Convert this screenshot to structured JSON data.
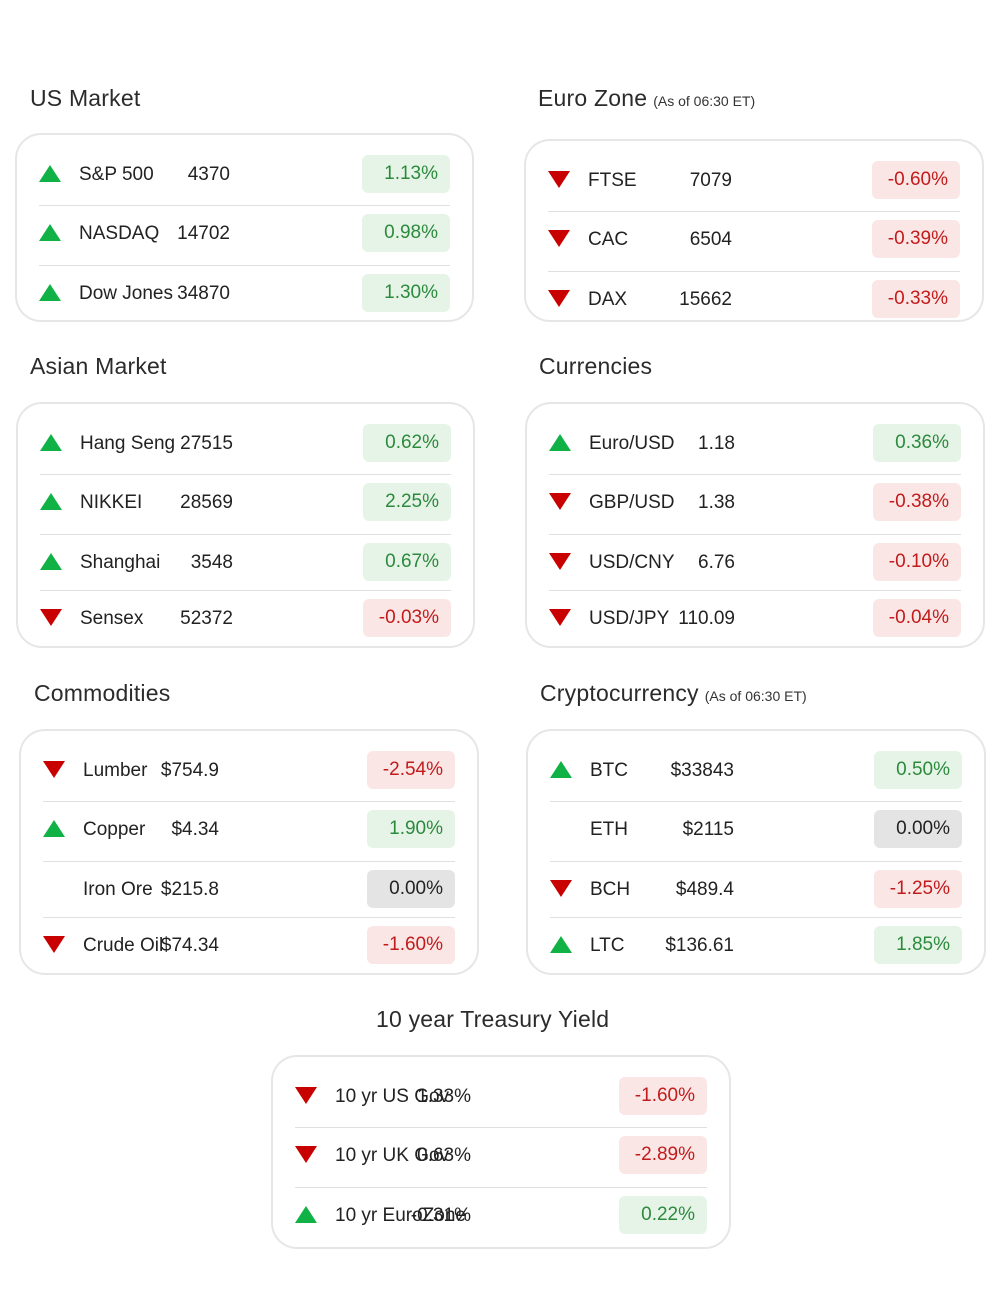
{
  "colors": {
    "up": "#10b246",
    "down": "#c80000",
    "pos_bg": "#e6f4e8",
    "neg_bg": "#fbe6e6",
    "neu_bg": "#e4e4e4"
  },
  "sections": [
    {
      "id": "us",
      "title": "US Market",
      "note": "",
      "rows": [
        {
          "dir": "up",
          "name": "S&P 500",
          "value": "4370",
          "change": "1.13%",
          "tone": "pos"
        },
        {
          "dir": "up",
          "name": "NASDAQ",
          "value": "14702",
          "change": "0.98%",
          "tone": "pos"
        },
        {
          "dir": "up",
          "name": "Dow Jones",
          "value": "34870",
          "change": "1.30%",
          "tone": "pos"
        }
      ]
    },
    {
      "id": "euro",
      "title": "Euro Zone",
      "note": "(As of 06:30 ET)",
      "rows": [
        {
          "dir": "down",
          "name": "FTSE",
          "value": "7079",
          "change": "-0.60%",
          "tone": "neg"
        },
        {
          "dir": "down",
          "name": "CAC",
          "value": "6504",
          "change": "-0.39%",
          "tone": "neg"
        },
        {
          "dir": "down",
          "name": "DAX",
          "value": "15662",
          "change": "-0.33%",
          "tone": "neg"
        }
      ]
    },
    {
      "id": "asia",
      "title": "Asian Market",
      "note": "",
      "rows": [
        {
          "dir": "up",
          "name": "Hang Seng",
          "value": "27515",
          "change": "0.62%",
          "tone": "pos"
        },
        {
          "dir": "up",
          "name": "NIKKEI",
          "value": "28569",
          "change": "2.25%",
          "tone": "pos"
        },
        {
          "dir": "up",
          "name": "Shanghai",
          "value": "3548",
          "change": "0.67%",
          "tone": "pos"
        },
        {
          "dir": "down",
          "name": "Sensex",
          "value": "52372",
          "change": "-0.03%",
          "tone": "neg"
        }
      ]
    },
    {
      "id": "fx",
      "title": "Currencies",
      "note": "",
      "rows": [
        {
          "dir": "up",
          "name": "Euro/USD",
          "value": "1.18",
          "change": "0.36%",
          "tone": "pos"
        },
        {
          "dir": "down",
          "name": "GBP/USD",
          "value": "1.38",
          "change": "-0.38%",
          "tone": "neg"
        },
        {
          "dir": "down",
          "name": "USD/CNY",
          "value": "6.76",
          "change": "-0.10%",
          "tone": "neg"
        },
        {
          "dir": "down",
          "name": "USD/JPY",
          "value": "110.09",
          "change": "-0.04%",
          "tone": "neg"
        }
      ]
    },
    {
      "id": "comm",
      "title": "Commodities",
      "note": "",
      "rows": [
        {
          "dir": "down",
          "name": "Lumber",
          "value": "$754.9",
          "change": "-2.54%",
          "tone": "neg"
        },
        {
          "dir": "up",
          "name": "Copper",
          "value": "$4.34",
          "change": "1.90%",
          "tone": "pos"
        },
        {
          "dir": "none",
          "name": "Iron Ore",
          "value": "$215.8",
          "change": "0.00%",
          "tone": "neu"
        },
        {
          "dir": "down",
          "name": "Crude Oil",
          "value": "$74.34",
          "change": "-1.60%",
          "tone": "neg"
        }
      ]
    },
    {
      "id": "crypto",
      "title": "Cryptocurrency",
      "note": "(As of 06:30 ET)",
      "rows": [
        {
          "dir": "up",
          "name": "BTC",
          "value": "$33843",
          "change": "0.50%",
          "tone": "pos"
        },
        {
          "dir": "none",
          "name": "ETH",
          "value": "$2115",
          "change": "0.00%",
          "tone": "neu"
        },
        {
          "dir": "down",
          "name": "BCH",
          "value": "$489.4",
          "change": "-1.25%",
          "tone": "neg"
        },
        {
          "dir": "up",
          "name": "LTC",
          "value": "$136.61",
          "change": "1.85%",
          "tone": "pos"
        }
      ]
    },
    {
      "id": "treasury",
      "title": "10 year Treasury Yield",
      "note": "",
      "rows": [
        {
          "dir": "down",
          "name": "10 yr US Gov",
          "value": "1.33%",
          "change": "-1.60%",
          "tone": "neg"
        },
        {
          "dir": "down",
          "name": "10 yr UK Gov",
          "value": "0.63%",
          "change": "-2.89%",
          "tone": "neg"
        },
        {
          "dir": "up",
          "name": "10 yr EuroZone",
          "value": "-0.31%",
          "change": "0.22%",
          "tone": "pos"
        }
      ]
    }
  ]
}
